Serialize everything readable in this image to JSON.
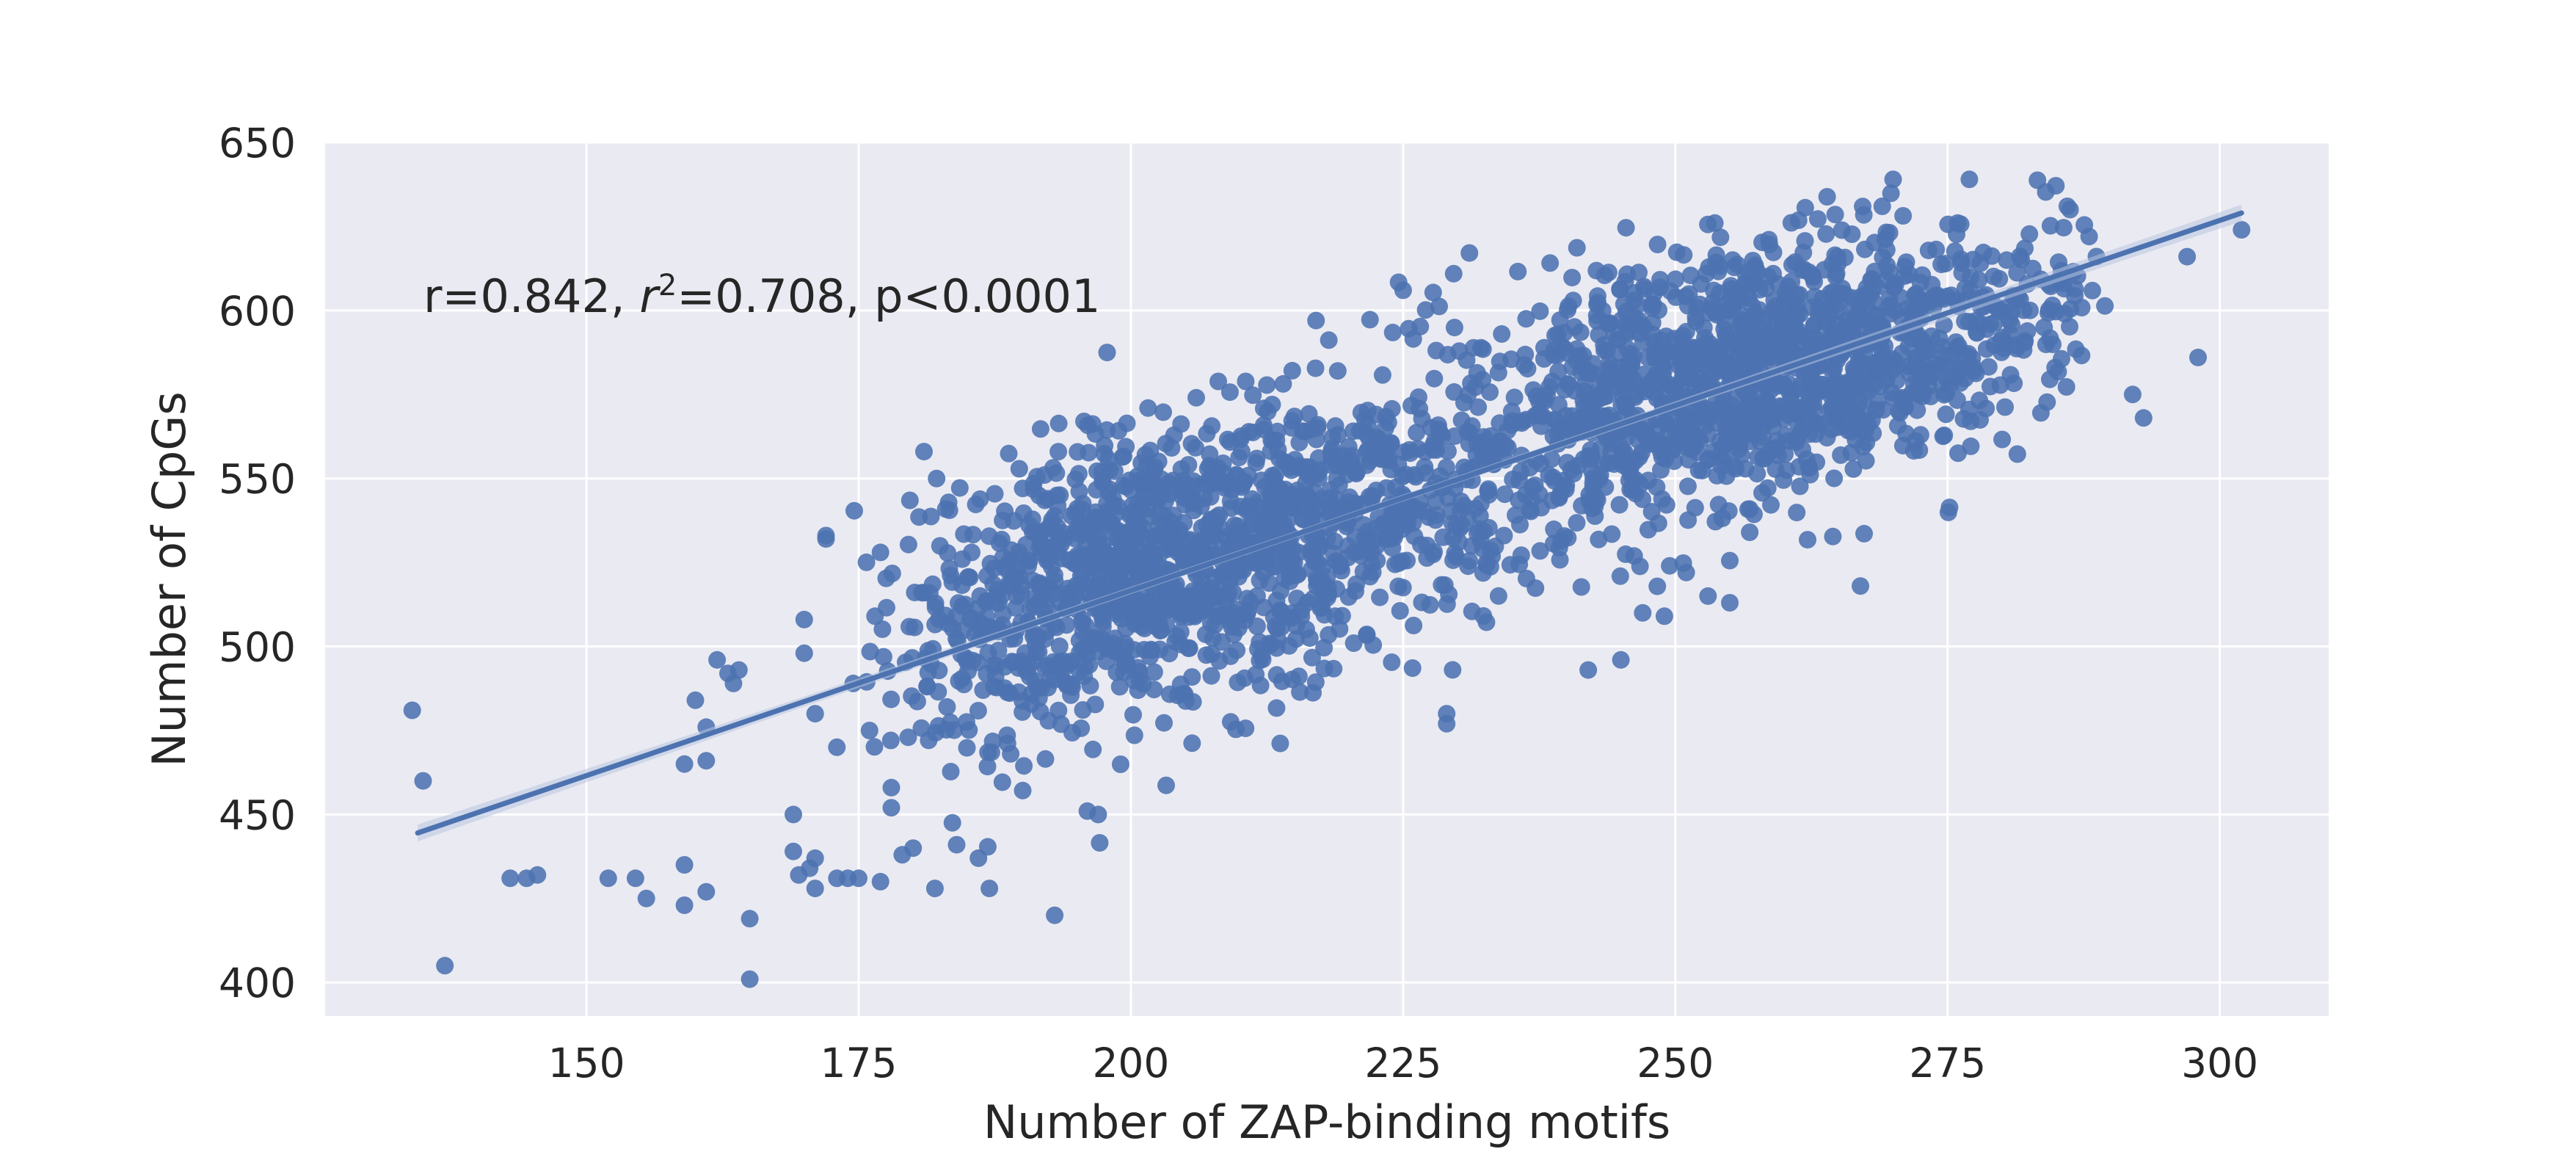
{
  "chart_data": {
    "type": "scatter",
    "title": "",
    "xlabel": "Number of ZAP-binding motifs",
    "ylabel": "Number of CpGs",
    "xlim": [
      126,
      310
    ],
    "ylim": [
      390,
      650
    ],
    "xticks": [
      150,
      175,
      200,
      225,
      250,
      275,
      300
    ],
    "yticks": [
      400,
      450,
      500,
      550,
      600,
      650
    ],
    "grid": true,
    "annotation": {
      "r_part": "r=0.842, ",
      "r2_symbol": "r",
      "r2_sup": "2",
      "rest": "=0.708, p<0.0001"
    },
    "regression": {
      "x_start": 134.5,
      "y_start": 444.5,
      "x_end": 302,
      "y_end": 629,
      "ci_halfwidth_ends": 2.5,
      "ci_halfwidth_center": 1.0
    },
    "colors": {
      "points": "#4c72b0",
      "line": "#4c72b0",
      "band": "#b7c4e0",
      "background": "#eaeaf2",
      "grid": "#ffffff"
    },
    "points_approx_count": 2400,
    "points_outliers": [
      [
        134,
        481
      ],
      [
        135,
        460
      ],
      [
        137,
        405
      ],
      [
        143,
        431
      ],
      [
        144.5,
        431
      ],
      [
        145.5,
        432
      ],
      [
        152,
        431
      ],
      [
        154.5,
        431
      ],
      [
        155.5,
        425
      ],
      [
        159,
        435
      ],
      [
        159,
        423
      ],
      [
        161,
        427
      ],
      [
        159,
        465
      ],
      [
        161,
        466
      ],
      [
        161,
        476
      ],
      [
        160,
        484
      ],
      [
        162,
        496
      ],
      [
        163,
        492
      ],
      [
        163.5,
        489
      ],
      [
        164,
        493
      ],
      [
        165,
        419
      ],
      [
        165,
        401
      ],
      [
        169,
        450
      ],
      [
        169,
        439
      ],
      [
        169.5,
        432
      ],
      [
        170.5,
        434
      ],
      [
        170,
        508
      ],
      [
        170,
        498
      ],
      [
        171,
        437
      ],
      [
        171,
        428
      ],
      [
        171,
        480
      ],
      [
        172,
        533
      ],
      [
        172,
        532
      ],
      [
        173,
        470
      ],
      [
        173,
        431
      ],
      [
        174,
        431
      ],
      [
        174.5,
        489
      ],
      [
        175,
        431
      ],
      [
        176,
        475
      ],
      [
        176.5,
        509
      ],
      [
        177,
        528
      ],
      [
        177,
        430
      ],
      [
        178,
        452
      ],
      [
        178,
        458
      ],
      [
        179,
        438
      ],
      [
        180,
        440
      ],
      [
        181,
        558
      ],
      [
        182,
        428
      ],
      [
        184,
        441
      ],
      [
        186,
        437
      ],
      [
        187,
        428
      ],
      [
        193,
        420
      ],
      [
        196,
        451
      ],
      [
        197,
        450
      ],
      [
        206,
        574
      ],
      [
        217,
        597
      ],
      [
        219,
        582
      ],
      [
        225,
        606
      ],
      [
        229,
        477
      ],
      [
        229,
        480
      ],
      [
        242,
        493
      ],
      [
        245,
        496
      ],
      [
        247,
        510
      ],
      [
        249,
        509
      ],
      [
        251,
        522
      ],
      [
        253,
        515
      ],
      [
        255,
        513
      ],
      [
        267,
        518
      ],
      [
        269,
        631
      ],
      [
        270,
        639
      ],
      [
        277,
        639
      ],
      [
        286,
        631
      ],
      [
        288,
        622
      ],
      [
        292,
        575
      ],
      [
        293,
        568
      ],
      [
        297,
        616
      ],
      [
        298,
        586
      ],
      [
        302,
        624
      ]
    ],
    "clusters": [
      {
        "cx": 185,
        "cy": 500,
        "sx": 4.5,
        "sy": 20,
        "n": 120
      },
      {
        "cx": 192,
        "cy": 515,
        "sx": 5,
        "sy": 22,
        "n": 220
      },
      {
        "cx": 200,
        "cy": 522,
        "sx": 5,
        "sy": 20,
        "n": 340
      },
      {
        "cx": 208,
        "cy": 528,
        "sx": 5,
        "sy": 20,
        "n": 280
      },
      {
        "cx": 216,
        "cy": 534,
        "sx": 5,
        "sy": 20,
        "n": 240
      },
      {
        "cx": 224,
        "cy": 543,
        "sx": 5,
        "sy": 20,
        "n": 150
      },
      {
        "cx": 232,
        "cy": 556,
        "sx": 5,
        "sy": 21,
        "n": 130
      },
      {
        "cx": 240,
        "cy": 565,
        "sx": 5,
        "sy": 22,
        "n": 170
      },
      {
        "cx": 248,
        "cy": 575,
        "sx": 5,
        "sy": 20,
        "n": 260
      },
      {
        "cx": 256,
        "cy": 582,
        "sx": 5,
        "sy": 19,
        "n": 330
      },
      {
        "cx": 264,
        "cy": 588,
        "sx": 5,
        "sy": 18,
        "n": 300
      },
      {
        "cx": 272,
        "cy": 593,
        "sx": 5,
        "sy": 17,
        "n": 190
      },
      {
        "cx": 280,
        "cy": 598,
        "sx": 4,
        "sy": 15,
        "n": 80
      },
      {
        "cx": 286,
        "cy": 603,
        "sx": 3,
        "sy": 13,
        "n": 25
      }
    ]
  }
}
